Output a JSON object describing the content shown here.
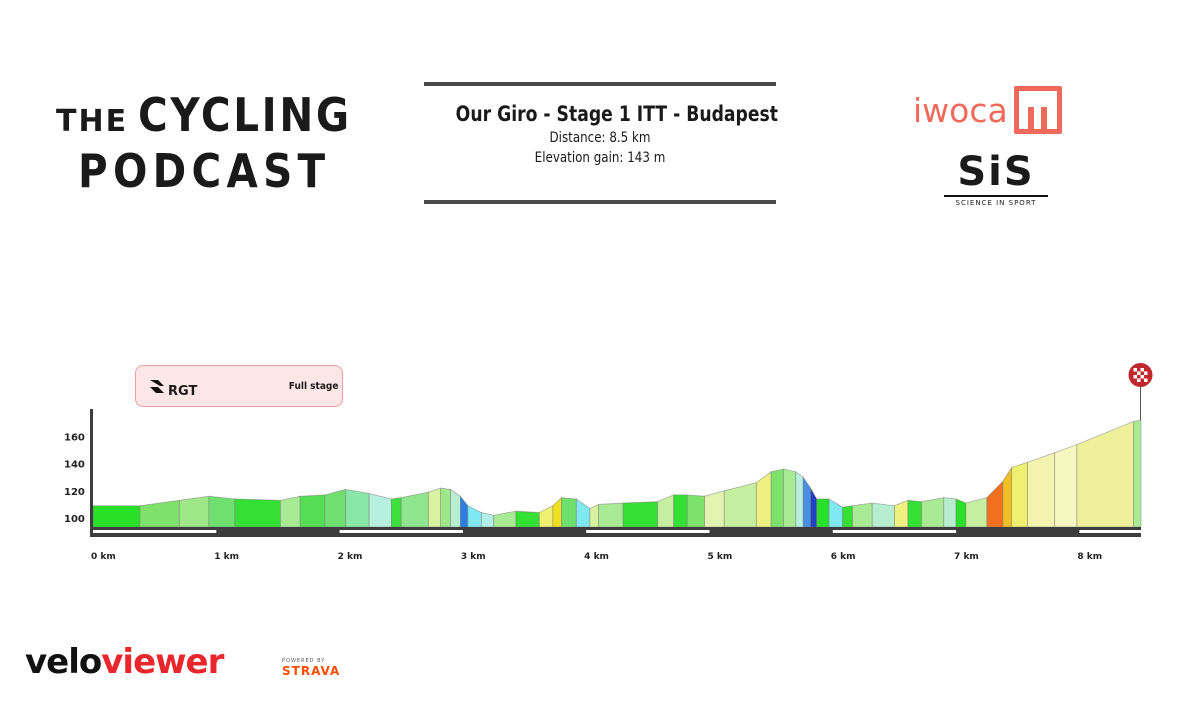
{
  "branding": {
    "podcast_line1_small": "THE",
    "podcast_line1_big": "CYCLING",
    "podcast_line2": "PODCAST",
    "sponsor_iwoca": "iwoca",
    "sponsor_sis": "SiS",
    "sponsor_sis_tagline": "SCIENCE IN SPORT",
    "rgt": "RGT",
    "veloviewer_a": "velo",
    "veloviewer_b": "viewer",
    "strava_powered": "POWERED BY",
    "strava": "STRAVA"
  },
  "colors": {
    "iwoca": "#ef6a5a",
    "veloviewer_red": "#e8262b",
    "strava": "#fc4c02",
    "axis_dark": "#3d3d3d",
    "badge_bg": "#fde6e6",
    "badge_border": "#ee9fa5"
  },
  "info": {
    "title": "Our Giro - Stage 1 ITT - Budapest",
    "distance": "Distance: 8.5 km",
    "elevation_gain": "Elevation gain: 143 m"
  },
  "badge": {
    "label": "Full stage"
  },
  "finish_icon": "checkered-flag-icon",
  "chart_data": {
    "type": "area",
    "xlabel": "",
    "ylabel": "",
    "x_unit": "km",
    "xlim": [
      0,
      8.5
    ],
    "ylim": [
      90,
      175
    ],
    "x_ticks": [
      {
        "value": 0,
        "label": "0 km"
      },
      {
        "value": 1,
        "label": "1 km"
      },
      {
        "value": 2,
        "label": "2 km"
      },
      {
        "value": 3,
        "label": "3 km"
      },
      {
        "value": 4,
        "label": "4 km"
      },
      {
        "value": 5,
        "label": "5 km"
      },
      {
        "value": 6,
        "label": "6 km"
      },
      {
        "value": 7,
        "label": "7 km"
      },
      {
        "value": 8,
        "label": "8 km"
      }
    ],
    "y_ticks": [
      {
        "value": 100,
        "label": "100"
      },
      {
        "value": 120,
        "label": "120"
      },
      {
        "value": 140,
        "label": "140"
      },
      {
        "value": 160,
        "label": "160"
      }
    ],
    "grid": false,
    "segments": [
      {
        "x0": 0.0,
        "x1": 0.38,
        "y0": 109,
        "y1": 109,
        "color": "#28e028"
      },
      {
        "x0": 0.38,
        "x1": 0.7,
        "y0": 109,
        "y1": 113,
        "color": "#7ee26a"
      },
      {
        "x0": 0.7,
        "x1": 0.94,
        "y0": 113,
        "y1": 116,
        "color": "#9fe88a"
      },
      {
        "x0": 0.94,
        "x1": 1.15,
        "y0": 116,
        "y1": 114,
        "color": "#6fe06f"
      },
      {
        "x0": 1.15,
        "x1": 1.52,
        "y0": 114,
        "y1": 113,
        "color": "#34e034"
      },
      {
        "x0": 1.52,
        "x1": 1.68,
        "y0": 113,
        "y1": 116,
        "color": "#a9eb95"
      },
      {
        "x0": 1.68,
        "x1": 1.88,
        "y0": 116,
        "y1": 117,
        "color": "#55dd55"
      },
      {
        "x0": 1.88,
        "x1": 2.05,
        "y0": 117,
        "y1": 121,
        "color": "#6fe06f"
      },
      {
        "x0": 2.05,
        "x1": 2.24,
        "y0": 121,
        "y1": 118,
        "color": "#88e6a6"
      },
      {
        "x0": 2.24,
        "x1": 2.42,
        "y0": 118,
        "y1": 114,
        "color": "#b8f0e0"
      },
      {
        "x0": 2.42,
        "x1": 2.5,
        "y0": 114,
        "y1": 115,
        "color": "#3ee03e"
      },
      {
        "x0": 2.5,
        "x1": 2.72,
        "y0": 115,
        "y1": 119,
        "color": "#8fe68f"
      },
      {
        "x0": 2.72,
        "x1": 2.82,
        "y0": 119,
        "y1": 122,
        "color": "#d8f2a0"
      },
      {
        "x0": 2.82,
        "x1": 2.9,
        "y0": 122,
        "y1": 121,
        "color": "#9fe88a"
      },
      {
        "x0": 2.9,
        "x1": 2.98,
        "y0": 121,
        "y1": 116,
        "color": "#b8eed0"
      },
      {
        "x0": 2.98,
        "x1": 3.04,
        "y0": 116,
        "y1": 109,
        "color": "#2a7fe0"
      },
      {
        "x0": 3.04,
        "x1": 3.15,
        "y0": 109,
        "y1": 104,
        "color": "#7fe8f0"
      },
      {
        "x0": 3.15,
        "x1": 3.25,
        "y0": 104,
        "y1": 102,
        "color": "#b0f0e8"
      },
      {
        "x0": 3.25,
        "x1": 3.43,
        "y0": 102,
        "y1": 105,
        "color": "#a9eb95"
      },
      {
        "x0": 3.43,
        "x1": 3.62,
        "y0": 105,
        "y1": 104,
        "color": "#34e034"
      },
      {
        "x0": 3.62,
        "x1": 3.73,
        "y0": 104,
        "y1": 109,
        "color": "#f0f070"
      },
      {
        "x0": 3.73,
        "x1": 3.8,
        "y0": 109,
        "y1": 115,
        "color": "#f0e020"
      },
      {
        "x0": 3.8,
        "x1": 3.92,
        "y0": 115,
        "y1": 114,
        "color": "#6fe06f"
      },
      {
        "x0": 3.92,
        "x1": 4.03,
        "y0": 114,
        "y1": 107,
        "color": "#7fe8f0"
      },
      {
        "x0": 4.03,
        "x1": 4.1,
        "y0": 107,
        "y1": 110,
        "color": "#d8f2a0"
      },
      {
        "x0": 4.1,
        "x1": 4.3,
        "y0": 110,
        "y1": 111,
        "color": "#a9eb95"
      },
      {
        "x0": 4.3,
        "x1": 4.58,
        "y0": 111,
        "y1": 112,
        "color": "#34e034"
      },
      {
        "x0": 4.58,
        "x1": 4.71,
        "y0": 112,
        "y1": 117,
        "color": "#c6f0a0"
      },
      {
        "x0": 4.71,
        "x1": 4.82,
        "y0": 117,
        "y1": 117,
        "color": "#34e034"
      },
      {
        "x0": 4.82,
        "x1": 4.96,
        "y0": 117,
        "y1": 116,
        "color": "#7ee26a"
      },
      {
        "x0": 4.96,
        "x1": 5.12,
        "y0": 116,
        "y1": 120,
        "color": "#e2f4b0"
      },
      {
        "x0": 5.12,
        "x1": 5.38,
        "y0": 120,
        "y1": 126,
        "color": "#c6f0a0"
      },
      {
        "x0": 5.38,
        "x1": 5.5,
        "y0": 126,
        "y1": 134,
        "color": "#eef080"
      },
      {
        "x0": 5.5,
        "x1": 5.6,
        "y0": 134,
        "y1": 136,
        "color": "#7ee26a"
      },
      {
        "x0": 5.6,
        "x1": 5.7,
        "y0": 136,
        "y1": 134,
        "color": "#a9eb95"
      },
      {
        "x0": 5.7,
        "x1": 5.76,
        "y0": 134,
        "y1": 130,
        "color": "#b8f0e0"
      },
      {
        "x0": 5.76,
        "x1": 5.82,
        "y0": 130,
        "y1": 122,
        "color": "#4a90e0"
      },
      {
        "x0": 5.82,
        "x1": 5.87,
        "y0": 122,
        "y1": 114,
        "color": "#2040c8"
      },
      {
        "x0": 5.87,
        "x1": 5.97,
        "y0": 114,
        "y1": 114,
        "color": "#28e028"
      },
      {
        "x0": 5.97,
        "x1": 6.08,
        "y0": 114,
        "y1": 108,
        "color": "#7fe8f0"
      },
      {
        "x0": 6.08,
        "x1": 6.16,
        "y0": 108,
        "y1": 109,
        "color": "#34e034"
      },
      {
        "x0": 6.16,
        "x1": 6.32,
        "y0": 109,
        "y1": 111,
        "color": "#a9eb95"
      },
      {
        "x0": 6.32,
        "x1": 6.5,
        "y0": 111,
        "y1": 109,
        "color": "#b8eed0"
      },
      {
        "x0": 6.5,
        "x1": 6.61,
        "y0": 109,
        "y1": 113,
        "color": "#eef080"
      },
      {
        "x0": 6.61,
        "x1": 6.72,
        "y0": 113,
        "y1": 112,
        "color": "#34e034"
      },
      {
        "x0": 6.72,
        "x1": 6.9,
        "y0": 112,
        "y1": 115,
        "color": "#a9eb95"
      },
      {
        "x0": 6.9,
        "x1": 7.0,
        "y0": 115,
        "y1": 114,
        "color": "#b8eed0"
      },
      {
        "x0": 7.0,
        "x1": 7.08,
        "y0": 114,
        "y1": 111,
        "color": "#28e028"
      },
      {
        "x0": 7.08,
        "x1": 7.25,
        "y0": 111,
        "y1": 115,
        "color": "#c6f0a0"
      },
      {
        "x0": 7.25,
        "x1": 7.38,
        "y0": 115,
        "y1": 127,
        "color": "#f07020"
      },
      {
        "x0": 7.38,
        "x1": 7.45,
        "y0": 127,
        "y1": 137,
        "color": "#f0c020"
      },
      {
        "x0": 7.45,
        "x1": 7.58,
        "y0": 137,
        "y1": 141,
        "color": "#f0f070"
      },
      {
        "x0": 7.58,
        "x1": 7.8,
        "y0": 141,
        "y1": 148,
        "color": "#f4f4b0"
      },
      {
        "x0": 7.8,
        "x1": 7.98,
        "y0": 148,
        "y1": 154,
        "color": "#f6f6c0"
      },
      {
        "x0": 7.98,
        "x1": 8.44,
        "y0": 154,
        "y1": 171,
        "color": "#eef09a"
      },
      {
        "x0": 8.44,
        "x1": 8.5,
        "y0": 171,
        "y1": 172,
        "color": "#a9eb95"
      }
    ]
  }
}
